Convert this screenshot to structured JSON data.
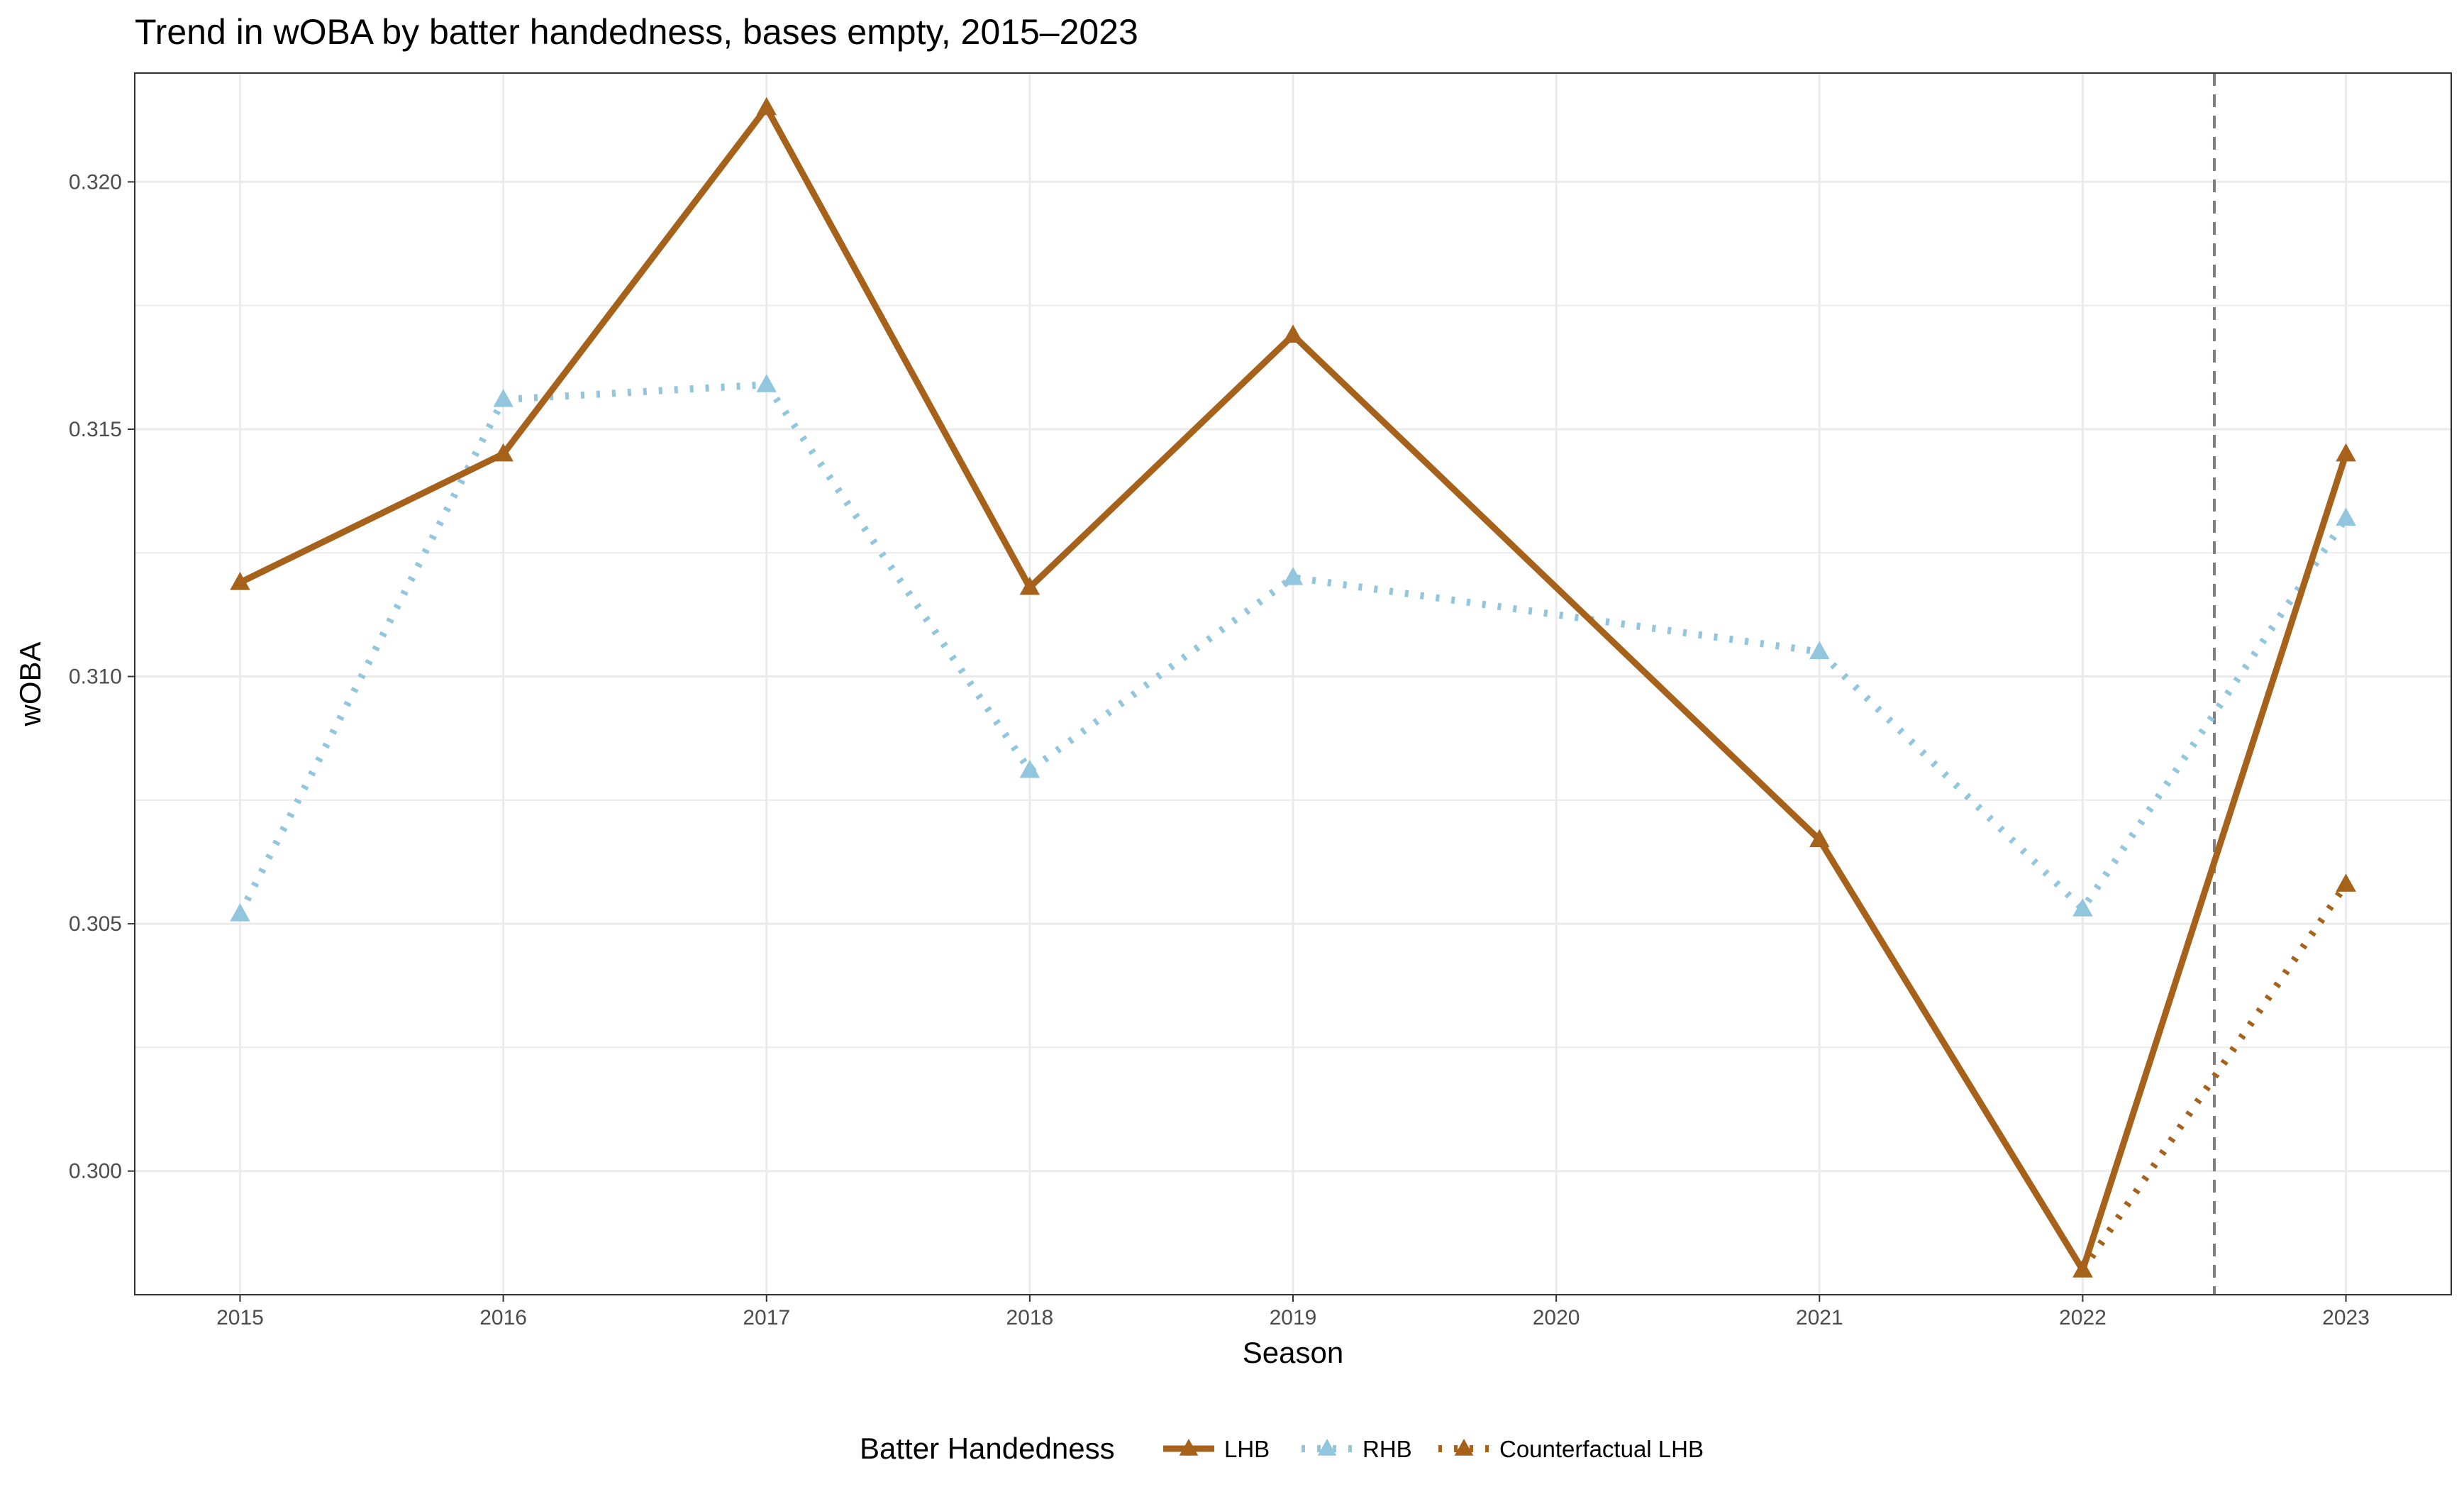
{
  "chart_data": {
    "type": "line",
    "title": "Trend in wOBA by batter handedness, bases empty, 2015–2023",
    "xlabel": "Season",
    "ylabel": "wOBA",
    "x": [
      2015,
      2016,
      2017,
      2018,
      2019,
      2020,
      2021,
      2022,
      2023
    ],
    "x_tick_labels": [
      "2015",
      "2016",
      "2017",
      "2018",
      "2019",
      "2020",
      "2021",
      "2022",
      "2023"
    ],
    "y_ticks": [
      0.3,
      0.305,
      0.31,
      0.315,
      0.32
    ],
    "y_tick_labels": [
      "0.300",
      "0.305",
      "0.310",
      "0.315",
      "0.320"
    ],
    "xlim": [
      2014.6,
      2023.4
    ],
    "ylim": [
      0.2975,
      0.3222
    ],
    "grid": true,
    "reference_line": {
      "x": 2022.5,
      "style": "dashed",
      "color": "#7f7f7f"
    },
    "legend": {
      "title": "Batter Handedness",
      "position": "bottom"
    },
    "series": [
      {
        "name": "LHB",
        "color": "#a6611a",
        "line_style": "solid",
        "marker": "triangle",
        "x": [
          2015,
          2016,
          2017,
          2018,
          2019,
          2021,
          2022,
          2023
        ],
        "values": [
          0.3119,
          0.3145,
          0.3215,
          0.3118,
          0.3169,
          0.3067,
          0.298,
          0.3145
        ]
      },
      {
        "name": "RHB",
        "color": "#92c5de",
        "line_style": "dotted",
        "marker": "triangle",
        "x": [
          2015,
          2016,
          2017,
          2018,
          2019,
          2021,
          2022,
          2023
        ],
        "values": [
          0.3052,
          0.3156,
          0.3159,
          0.3081,
          0.312,
          0.3105,
          0.3053,
          0.3132
        ]
      },
      {
        "name": "Counterfactual LHB",
        "color": "#a6611a",
        "line_style": "dotted",
        "marker": "triangle",
        "x": [
          2022,
          2023
        ],
        "values": [
          0.298,
          0.3058
        ]
      }
    ]
  }
}
